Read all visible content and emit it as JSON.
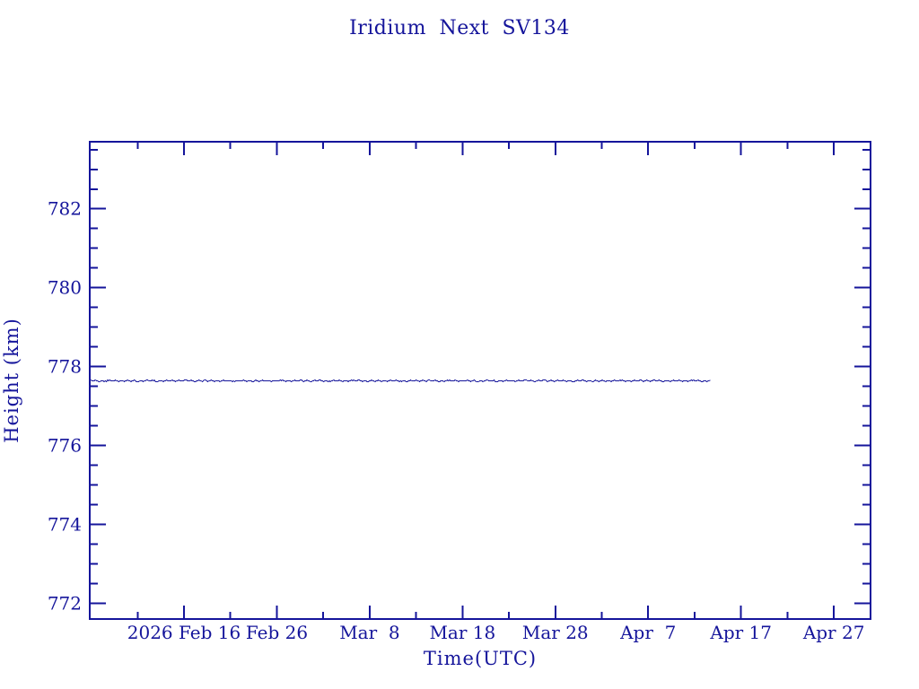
{
  "page": {
    "background_color": "#ffffff"
  },
  "chart_data": {
    "type": "line",
    "title": "Iridium Next SV134",
    "xlabel": "Time(UTC)",
    "ylabel": "Height (km)",
    "accent_color": "#15159b",
    "grid": false,
    "legend": "none",
    "frame": "box with inward ticks on all four sides",
    "x_axis": {
      "unit": "days relative to 2026-02-16",
      "range_days": [
        -10.15,
        73.95
      ],
      "major_ticks": [
        {
          "day": 0,
          "label": "2026 Feb 16"
        },
        {
          "day": 10,
          "label": "Feb 26"
        },
        {
          "day": 20,
          "label": "Mar  8"
        },
        {
          "day": 30,
          "label": "Mar 18"
        },
        {
          "day": 40,
          "label": "Mar 28"
        },
        {
          "day": 50,
          "label": "Apr  7"
        },
        {
          "day": 60,
          "label": "Apr 17"
        },
        {
          "day": 70,
          "label": "Apr 27"
        }
      ],
      "minor_tick_days": [
        -5,
        5,
        15,
        25,
        35,
        45,
        55,
        65
      ]
    },
    "y_axis": {
      "range_km": [
        771.6,
        783.7
      ],
      "major_ticks": [
        772,
        774,
        776,
        778,
        780,
        782
      ],
      "minor_tick_interval": 0.5
    },
    "series": [
      {
        "name": "orbit-height",
        "start_date": "2026-02-06",
        "end_date": "2026-04-13",
        "start_day": -10.15,
        "end_day": 56.8,
        "mean_value_km": 777.65,
        "noise_amplitude_km": 0.025,
        "description": "Nearly constant height ~777.65 km with tiny jitter; line ends around Apr 13, well before right edge of axis"
      }
    ]
  }
}
